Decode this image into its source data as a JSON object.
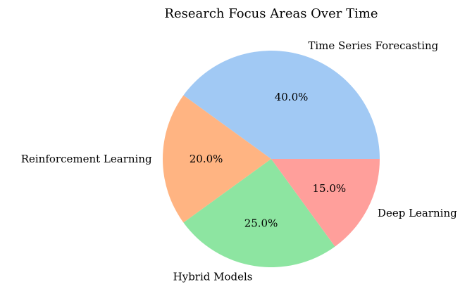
{
  "chart_data": {
    "type": "pie",
    "title": "Research Focus Areas Over Time",
    "start_angle_deg": 0,
    "direction": "counterclockwise",
    "slices": [
      {
        "label": "Time Series Forecasting",
        "value": 40.0,
        "pct_label": "40.0%",
        "color": "#a1c9f4"
      },
      {
        "label": "Reinforcement Learning",
        "value": 20.0,
        "pct_label": "20.0%",
        "color": "#ffb482"
      },
      {
        "label": "Hybrid Models",
        "value": 25.0,
        "pct_label": "25.0%",
        "color": "#8de5a1"
      },
      {
        "label": "Deep Learning",
        "value": 15.0,
        "pct_label": "15.0%",
        "color": "#ff9f9b"
      }
    ]
  }
}
